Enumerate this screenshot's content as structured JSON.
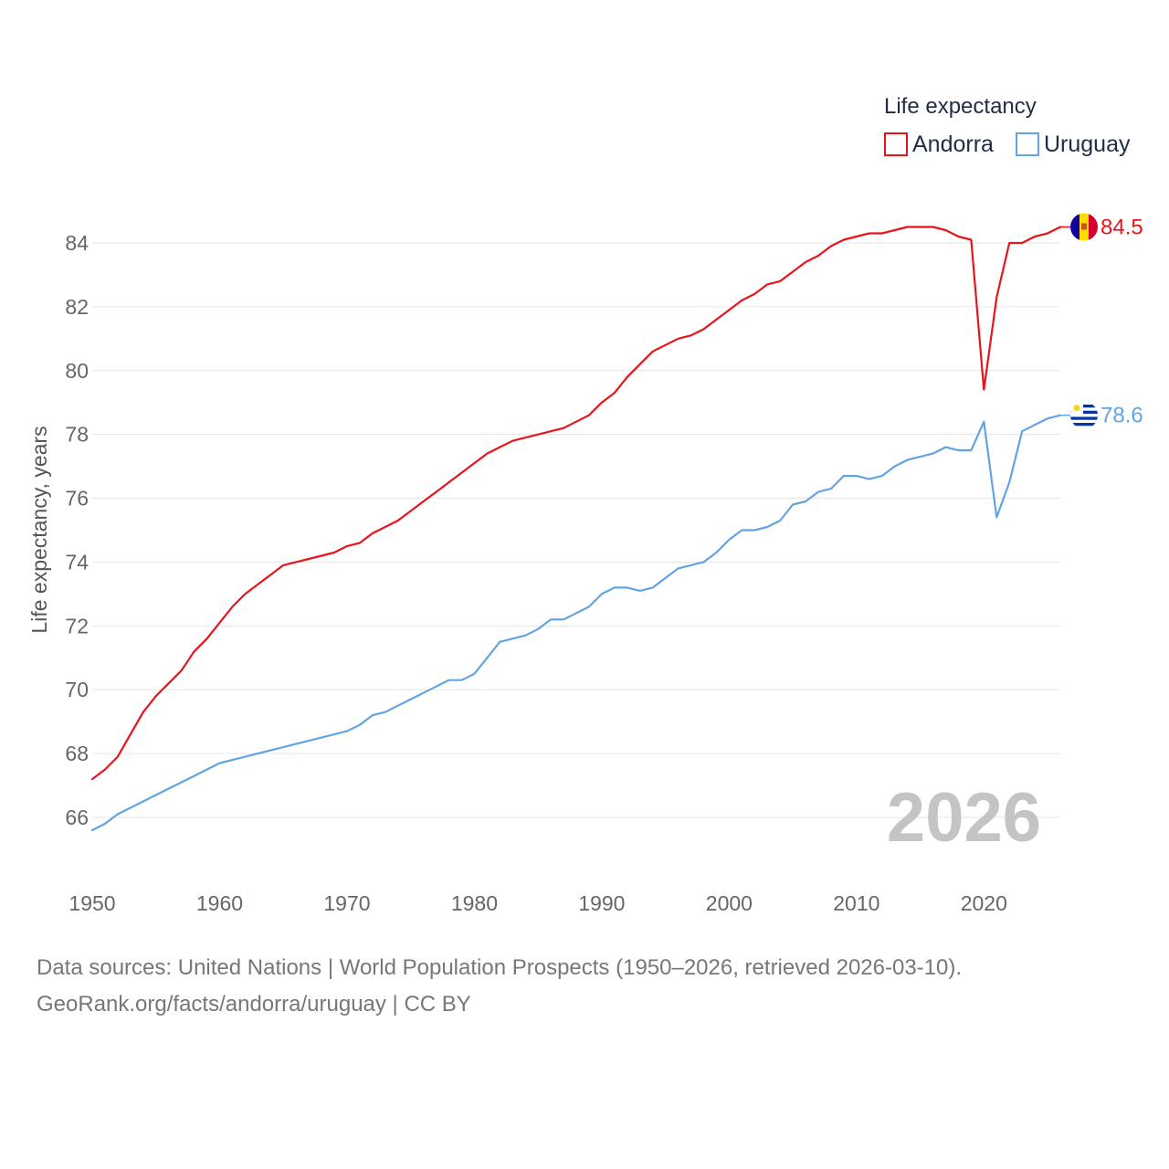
{
  "chart_data": {
    "type": "line",
    "legend_title": "Life expectancy",
    "ylabel": "Life expectancy, years",
    "xlabel": "",
    "xlim": [
      1950,
      2026
    ],
    "ylim": [
      64.5,
      85
    ],
    "x_ticks": [
      1950,
      1960,
      1970,
      1980,
      1990,
      2000,
      2010,
      2020
    ],
    "y_ticks": [
      66,
      68,
      70,
      72,
      74,
      76,
      78,
      80,
      82,
      84
    ],
    "current_year_label": "2026",
    "x": [
      1950,
      1951,
      1952,
      1953,
      1954,
      1955,
      1956,
      1957,
      1958,
      1959,
      1960,
      1961,
      1962,
      1963,
      1964,
      1965,
      1966,
      1967,
      1968,
      1969,
      1970,
      1971,
      1972,
      1973,
      1974,
      1975,
      1976,
      1977,
      1978,
      1979,
      1980,
      1981,
      1982,
      1983,
      1984,
      1985,
      1986,
      1987,
      1988,
      1989,
      1990,
      1991,
      1992,
      1993,
      1994,
      1995,
      1996,
      1997,
      1998,
      1999,
      2000,
      2001,
      2002,
      2003,
      2004,
      2005,
      2006,
      2007,
      2008,
      2009,
      2010,
      2011,
      2012,
      2013,
      2014,
      2015,
      2016,
      2017,
      2018,
      2019,
      2020,
      2021,
      2022,
      2023,
      2024,
      2025,
      2026
    ],
    "series": [
      {
        "name": "Andorra",
        "color": "#e8141b",
        "end_label": "84.5",
        "flag": "andorra-flag",
        "values": [
          67.2,
          67.5,
          67.9,
          68.6,
          69.3,
          69.8,
          70.2,
          70.6,
          71.2,
          71.6,
          72.1,
          72.6,
          73.0,
          73.3,
          73.6,
          73.9,
          74.0,
          74.1,
          74.2,
          74.3,
          74.5,
          74.6,
          74.9,
          75.1,
          75.3,
          75.6,
          75.9,
          76.2,
          76.5,
          76.8,
          77.1,
          77.4,
          77.6,
          77.8,
          77.9,
          78.0,
          78.1,
          78.2,
          78.4,
          78.6,
          79.0,
          79.3,
          79.8,
          80.2,
          80.6,
          80.8,
          81.0,
          81.1,
          81.3,
          81.6,
          81.9,
          82.2,
          82.4,
          82.7,
          82.8,
          83.1,
          83.4,
          83.6,
          83.9,
          84.1,
          84.2,
          84.3,
          84.3,
          84.4,
          84.5,
          84.5,
          84.5,
          84.4,
          84.2,
          84.1,
          79.4,
          82.3,
          84.0,
          84.0,
          84.2,
          84.3,
          84.5
        ]
      },
      {
        "name": "Uruguay",
        "color": "#62a3e2",
        "end_label": "78.6",
        "flag": "uruguay-flag",
        "values": [
          65.6,
          65.8,
          66.1,
          66.3,
          66.5,
          66.7,
          66.9,
          67.1,
          67.3,
          67.5,
          67.7,
          67.8,
          67.9,
          68.0,
          68.1,
          68.2,
          68.3,
          68.4,
          68.5,
          68.6,
          68.7,
          68.9,
          69.2,
          69.3,
          69.5,
          69.7,
          69.9,
          70.1,
          70.3,
          70.3,
          70.5,
          71.0,
          71.5,
          71.6,
          71.7,
          71.9,
          72.2,
          72.2,
          72.4,
          72.6,
          73.0,
          73.2,
          73.2,
          73.1,
          73.2,
          73.5,
          73.8,
          73.9,
          74.0,
          74.3,
          74.7,
          75.0,
          75.0,
          75.1,
          75.3,
          75.8,
          75.9,
          76.2,
          76.3,
          76.7,
          76.7,
          76.6,
          76.7,
          77.0,
          77.2,
          77.3,
          77.4,
          77.6,
          77.5,
          77.5,
          78.4,
          75.4,
          76.5,
          78.1,
          78.3,
          78.5,
          78.6
        ]
      }
    ]
  },
  "footer": {
    "line1": "Data sources: United Nations | World Population Prospects (1950–2026, retrieved 2026-03-10).",
    "line2": "GeoRank.org/facts/andorra/uruguay | CC BY"
  }
}
